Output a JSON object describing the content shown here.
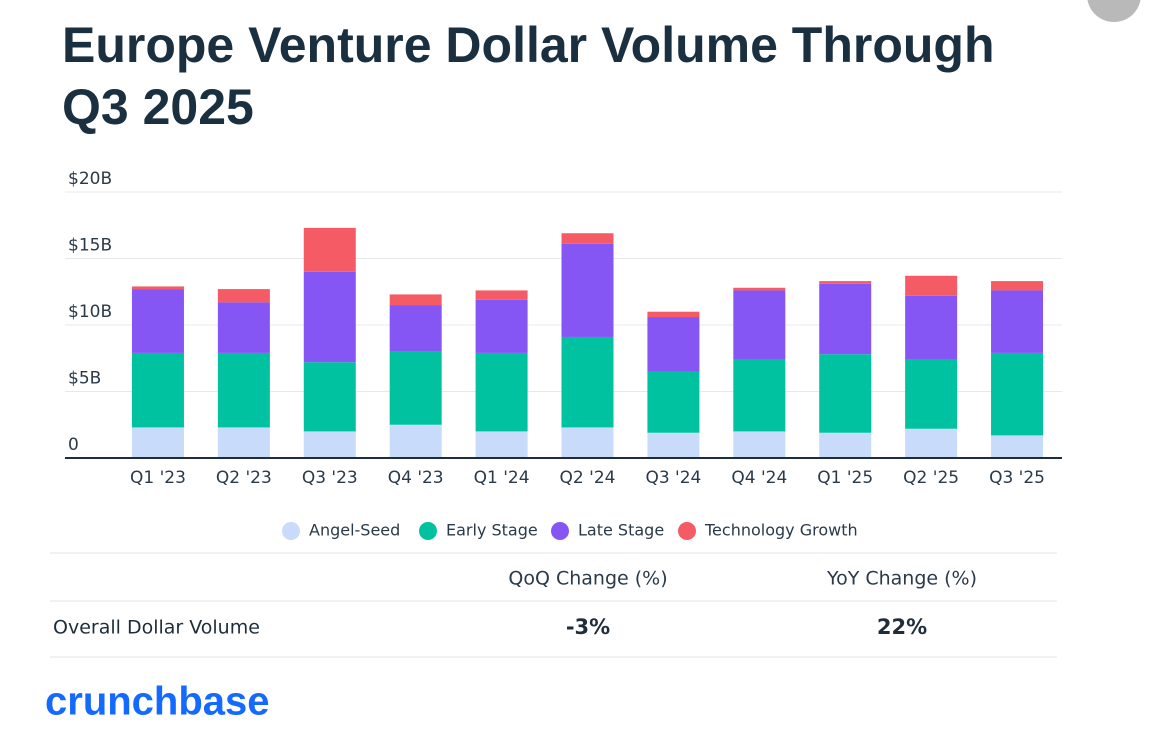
{
  "chart_data": {
    "type": "bar",
    "stacked": true,
    "title": "Europe Venture Dollar Volume Through Q3 2025",
    "categories": [
      "Q1 '23",
      "Q2 '23",
      "Q3 '23",
      "Q4 '23",
      "Q1 '24",
      "Q2 '24",
      "Q3 '24",
      "Q4 '24",
      "Q1 '25",
      "Q2 '25",
      "Q3 '25"
    ],
    "series": [
      {
        "name": "Angel-Seed",
        "color": "#c9dbfb",
        "values": [
          2.3,
          2.3,
          2.0,
          2.5,
          2.0,
          2.3,
          1.9,
          2.0,
          1.9,
          2.2,
          1.7
        ]
      },
      {
        "name": "Early Stage",
        "color": "#00c2a0",
        "values": [
          5.6,
          5.6,
          5.2,
          5.5,
          5.9,
          6.8,
          4.6,
          5.4,
          5.9,
          5.2,
          6.2
        ]
      },
      {
        "name": "Late Stage",
        "color": "#8656f5",
        "values": [
          4.8,
          3.8,
          6.8,
          3.5,
          4.0,
          7.0,
          4.1,
          5.2,
          5.3,
          4.8,
          4.7
        ]
      },
      {
        "name": "Technology Growth",
        "color": "#f45b64",
        "values": [
          0.2,
          1.0,
          3.3,
          0.8,
          0.7,
          0.8,
          0.4,
          0.2,
          0.2,
          1.5,
          0.7
        ]
      }
    ],
    "ylim": [
      0,
      20
    ],
    "yticks": [
      0,
      {
        "value": 5,
        "label": "$5B"
      },
      {
        "value": 10,
        "label": "$10B"
      },
      {
        "value": 15,
        "label": "$15B"
      },
      {
        "value": 20,
        "label": "$20B"
      }
    ],
    "grid": true,
    "legend": "bottom"
  },
  "table": {
    "columns": [
      "QoQ Change (%)",
      "YoY Change (%)"
    ],
    "rows": [
      {
        "label": "Overall Dollar Volume",
        "values": [
          "-3%",
          "22%"
        ]
      }
    ]
  },
  "logo": "crunchbase"
}
